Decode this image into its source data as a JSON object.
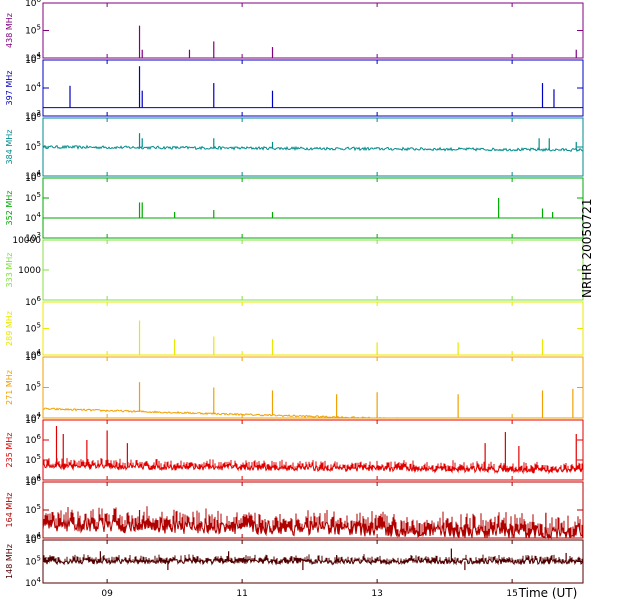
{
  "chart_data": {
    "type": "line",
    "station_label": "NRHR 20050721",
    "x_axis": {
      "title": "Time (UT)",
      "range_hours": [
        8.05,
        16.05
      ],
      "ticks": [
        {
          "value": 9,
          "label": "09"
        },
        {
          "value": 11,
          "label": "11"
        },
        {
          "value": 13,
          "label": "13"
        },
        {
          "value": 15,
          "label": "15"
        }
      ]
    },
    "panels": [
      {
        "name": "438 MHz",
        "color": "#800080",
        "scale": "log",
        "ylim": [
          10000,
          1000000
        ],
        "tick_labels": [
          "10^4",
          "10^5",
          "10^6"
        ],
        "baseline": 10000,
        "noise": 0.0,
        "trend": 0.0,
        "spikes": [
          [
            9.48,
            150000
          ],
          [
            9.52,
            20000
          ],
          [
            10.22,
            20000
          ],
          [
            10.58,
            40000
          ],
          [
            11.45,
            25000
          ],
          [
            15.95,
            20000
          ]
        ]
      },
      {
        "name": "397 MHz",
        "color": "#0000c0",
        "scale": "log",
        "ylim": [
          1000,
          100000
        ],
        "tick_labels": [
          "10^3",
          "10^4",
          "10^5"
        ],
        "baseline": 2000,
        "noise": 0.0,
        "trend": 0.0,
        "spikes": [
          [
            8.45,
            12000
          ],
          [
            9.48,
            60000
          ],
          [
            9.52,
            8000
          ],
          [
            10.58,
            15000
          ],
          [
            11.45,
            8000
          ],
          [
            15.45,
            15000
          ],
          [
            15.62,
            9000
          ]
        ]
      },
      {
        "name": "384 MHz",
        "color": "#008b8b",
        "scale": "log",
        "ylim": [
          10000,
          1000000
        ],
        "tick_labels": [
          "10^4",
          "10^5",
          "10^6"
        ],
        "baseline": 100000,
        "noise": 0.05,
        "trend": -0.1,
        "spikes": [
          [
            9.48,
            300000
          ],
          [
            9.52,
            200000
          ],
          [
            10.58,
            200000
          ],
          [
            11.45,
            150000
          ],
          [
            15.4,
            200000
          ],
          [
            15.55,
            200000
          ],
          [
            15.95,
            150000
          ]
        ]
      },
      {
        "name": "352 MHz",
        "color": "#00aa00",
        "scale": "log",
        "ylim": [
          1000,
          1000000
        ],
        "tick_labels": [
          "10^3",
          "10^4",
          "10^5",
          "10^6"
        ],
        "baseline": 10000,
        "noise": 0.0,
        "trend": 0.0,
        "spikes": [
          [
            9.48,
            60000
          ],
          [
            9.52,
            60000
          ],
          [
            10.0,
            20000
          ],
          [
            10.58,
            25000
          ],
          [
            11.45,
            20000
          ],
          [
            14.8,
            100000
          ],
          [
            15.45,
            30000
          ],
          [
            15.6,
            20000
          ]
        ]
      },
      {
        "name": "333 MHz",
        "color": "#80e040",
        "scale": "log",
        "ylim": [
          100,
          10000
        ],
        "tick_labels": [
          "1000",
          "10000"
        ],
        "baseline": 10000,
        "noise": 0.0,
        "trend": 0.0,
        "spikes": []
      },
      {
        "name": "289 MHz",
        "color": "#e8e800",
        "scale": "log",
        "ylim": [
          10000,
          1000000
        ],
        "tick_labels": [
          "10^4",
          "10^5",
          "10^6"
        ],
        "baseline": 10000,
        "noise": 0.0,
        "trend": 0.0,
        "spikes": [
          [
            9.48,
            200000
          ],
          [
            10.0,
            40000
          ],
          [
            10.58,
            50000
          ],
          [
            11.45,
            40000
          ],
          [
            13.0,
            30000
          ],
          [
            14.2,
            30000
          ],
          [
            15.45,
            40000
          ]
        ]
      },
      {
        "name": "271 MHz",
        "color": "#f0a000",
        "scale": "log",
        "ylim": [
          10000,
          1000000
        ],
        "tick_labels": [
          "10^4",
          "10^5",
          "10^6"
        ],
        "baseline": 20000,
        "noise": 0.03,
        "trend": -0.5,
        "spikes": [
          [
            9.48,
            150000
          ],
          [
            10.58,
            100000
          ],
          [
            11.45,
            80000
          ],
          [
            12.4,
            60000
          ],
          [
            13.0,
            70000
          ],
          [
            14.2,
            60000
          ],
          [
            15.45,
            80000
          ],
          [
            15.9,
            90000
          ]
        ]
      },
      {
        "name": "235 MHz",
        "color": "#e00000",
        "scale": "log",
        "ylim": [
          10000,
          10000000
        ],
        "tick_labels": [
          "10^4",
          "10^5",
          "10^6",
          "10^7"
        ],
        "baseline": 50000,
        "noise": 0.15,
        "trend": -0.2,
        "spikes": [
          [
            8.25,
            5000000
          ],
          [
            8.35,
            2000000
          ],
          [
            8.7,
            1000000
          ],
          [
            9.0,
            3000000
          ],
          [
            9.3,
            700000
          ],
          [
            14.6,
            700000
          ],
          [
            14.9,
            2500000
          ],
          [
            15.1,
            500000
          ],
          [
            15.95,
            2000000
          ]
        ]
      },
      {
        "name": "164 MHz",
        "color": "#b00000",
        "scale": "log",
        "ylim": [
          10000,
          1000000
        ],
        "tick_labels": [
          "10^4",
          "10^5",
          "10^6"
        ],
        "baseline": 30000,
        "noise": 0.25,
        "trend": -0.3,
        "spikes": [
          [
            9.48,
            100000
          ],
          [
            15.5,
            80000
          ]
        ]
      },
      {
        "name": "148 MHz",
        "color": "#500000",
        "scale": "log",
        "ylim": [
          10000,
          1000000
        ],
        "tick_labels": [
          "10^4",
          "10^5",
          "10^6"
        ],
        "baseline": 100000,
        "noise": 0.12,
        "trend": 0.0,
        "spikes": [
          [
            8.9,
            300000
          ],
          [
            9.9,
            40000
          ],
          [
            10.8,
            300000
          ],
          [
            11.9,
            40000
          ],
          [
            12.4,
            200000
          ],
          [
            14.1,
            400000
          ],
          [
            14.3,
            40000
          ],
          [
            15.8,
            250000
          ]
        ]
      }
    ]
  }
}
